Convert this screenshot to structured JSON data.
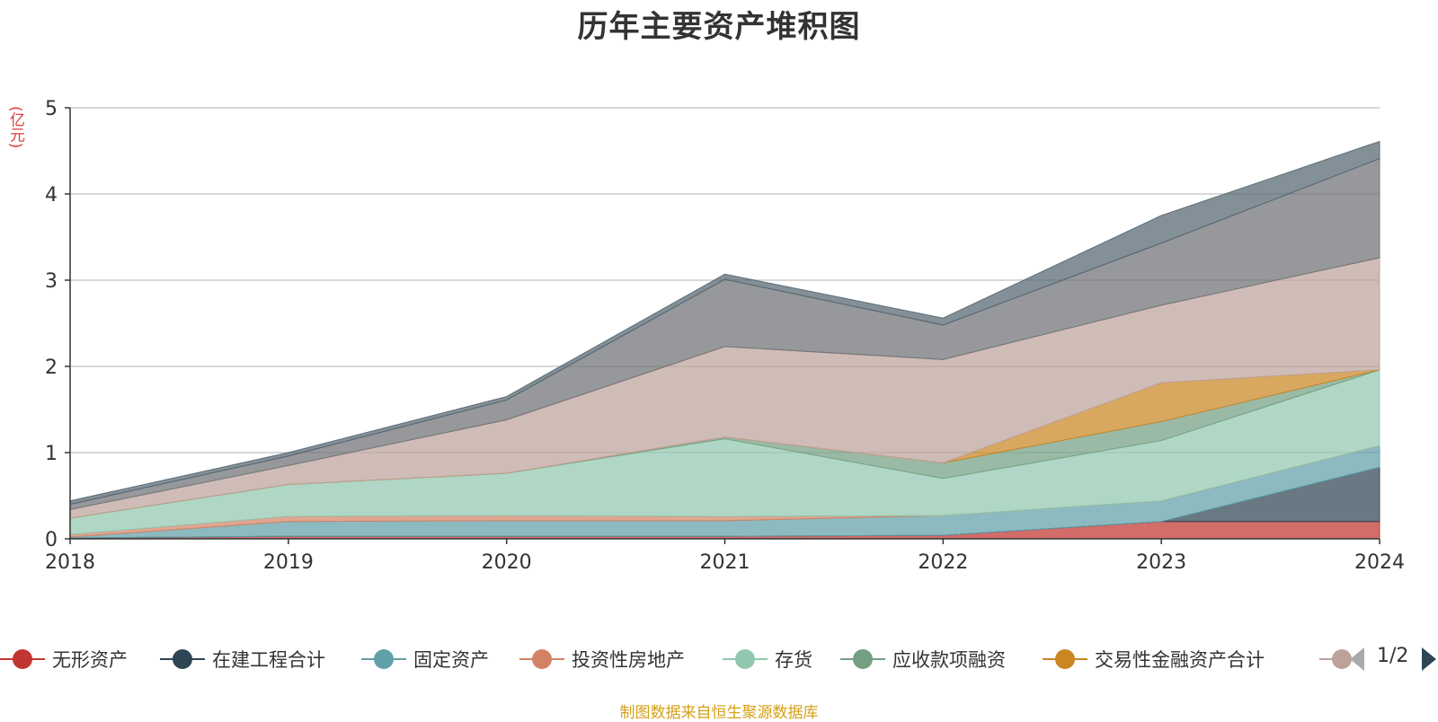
{
  "chart_data": {
    "type": "area",
    "stacked": true,
    "title": "历年主要资产堆积图",
    "y_unit": "(亿元)",
    "x": [
      "2018",
      "2019",
      "2020",
      "2021",
      "2022",
      "2023",
      "2024"
    ],
    "ylim": [
      0,
      5
    ],
    "yticks": [
      "0",
      "1",
      "2",
      "3",
      "4",
      "5"
    ],
    "grid": true,
    "legend_position": "bottom",
    "series": [
      {
        "name": "无形资产",
        "color": "#c23531",
        "values": [
          0.01,
          0.03,
          0.03,
          0.03,
          0.04,
          0.2,
          0.2
        ]
      },
      {
        "name": "在建工程合计",
        "color": "#2f4554",
        "values": [
          0.0,
          0.0,
          0.0,
          0.0,
          0.0,
          0.0,
          0.63
        ]
      },
      {
        "name": "固定资产",
        "color": "#61a0a8",
        "values": [
          0.01,
          0.17,
          0.18,
          0.18,
          0.23,
          0.24,
          0.25
        ]
      },
      {
        "name": "投资性房地产",
        "color": "#d48265",
        "values": [
          0.03,
          0.06,
          0.06,
          0.05,
          0.0,
          0.0,
          0.0
        ]
      },
      {
        "name": "存货",
        "color": "#91c7ae",
        "values": [
          0.19,
          0.37,
          0.49,
          0.9,
          0.43,
          0.7,
          0.88
        ]
      },
      {
        "name": "应收款项融资",
        "color": "#749f83",
        "values": [
          0.0,
          0.0,
          0.0,
          0.02,
          0.18,
          0.22,
          0.0
        ]
      },
      {
        "name": "交易性金融资产合计",
        "color": "#ca8622",
        "values": [
          0.0,
          0.0,
          0.0,
          0.0,
          0.0,
          0.45,
          0.0
        ]
      },
      {
        "name": "",
        "color": "#bda29a",
        "values": [
          0.1,
          0.22,
          0.62,
          1.05,
          1.2,
          0.9,
          1.3
        ]
      },
      {
        "name": "",
        "color": "#6e7074",
        "values": [
          0.06,
          0.11,
          0.23,
          0.78,
          0.4,
          0.72,
          1.15
        ]
      },
      {
        "name": "",
        "color": "#546570",
        "values": [
          0.04,
          0.04,
          0.04,
          0.06,
          0.08,
          0.32,
          0.2
        ]
      }
    ]
  },
  "legend": {
    "page_indicator": "1/2",
    "items": [
      "无形资产",
      "在建工程合计",
      "固定资产",
      "投资性房地产",
      "存货",
      "应收款项融资",
      "交易性金融资产合计"
    ]
  },
  "source_note": "制图数据来自恒生聚源数据库"
}
